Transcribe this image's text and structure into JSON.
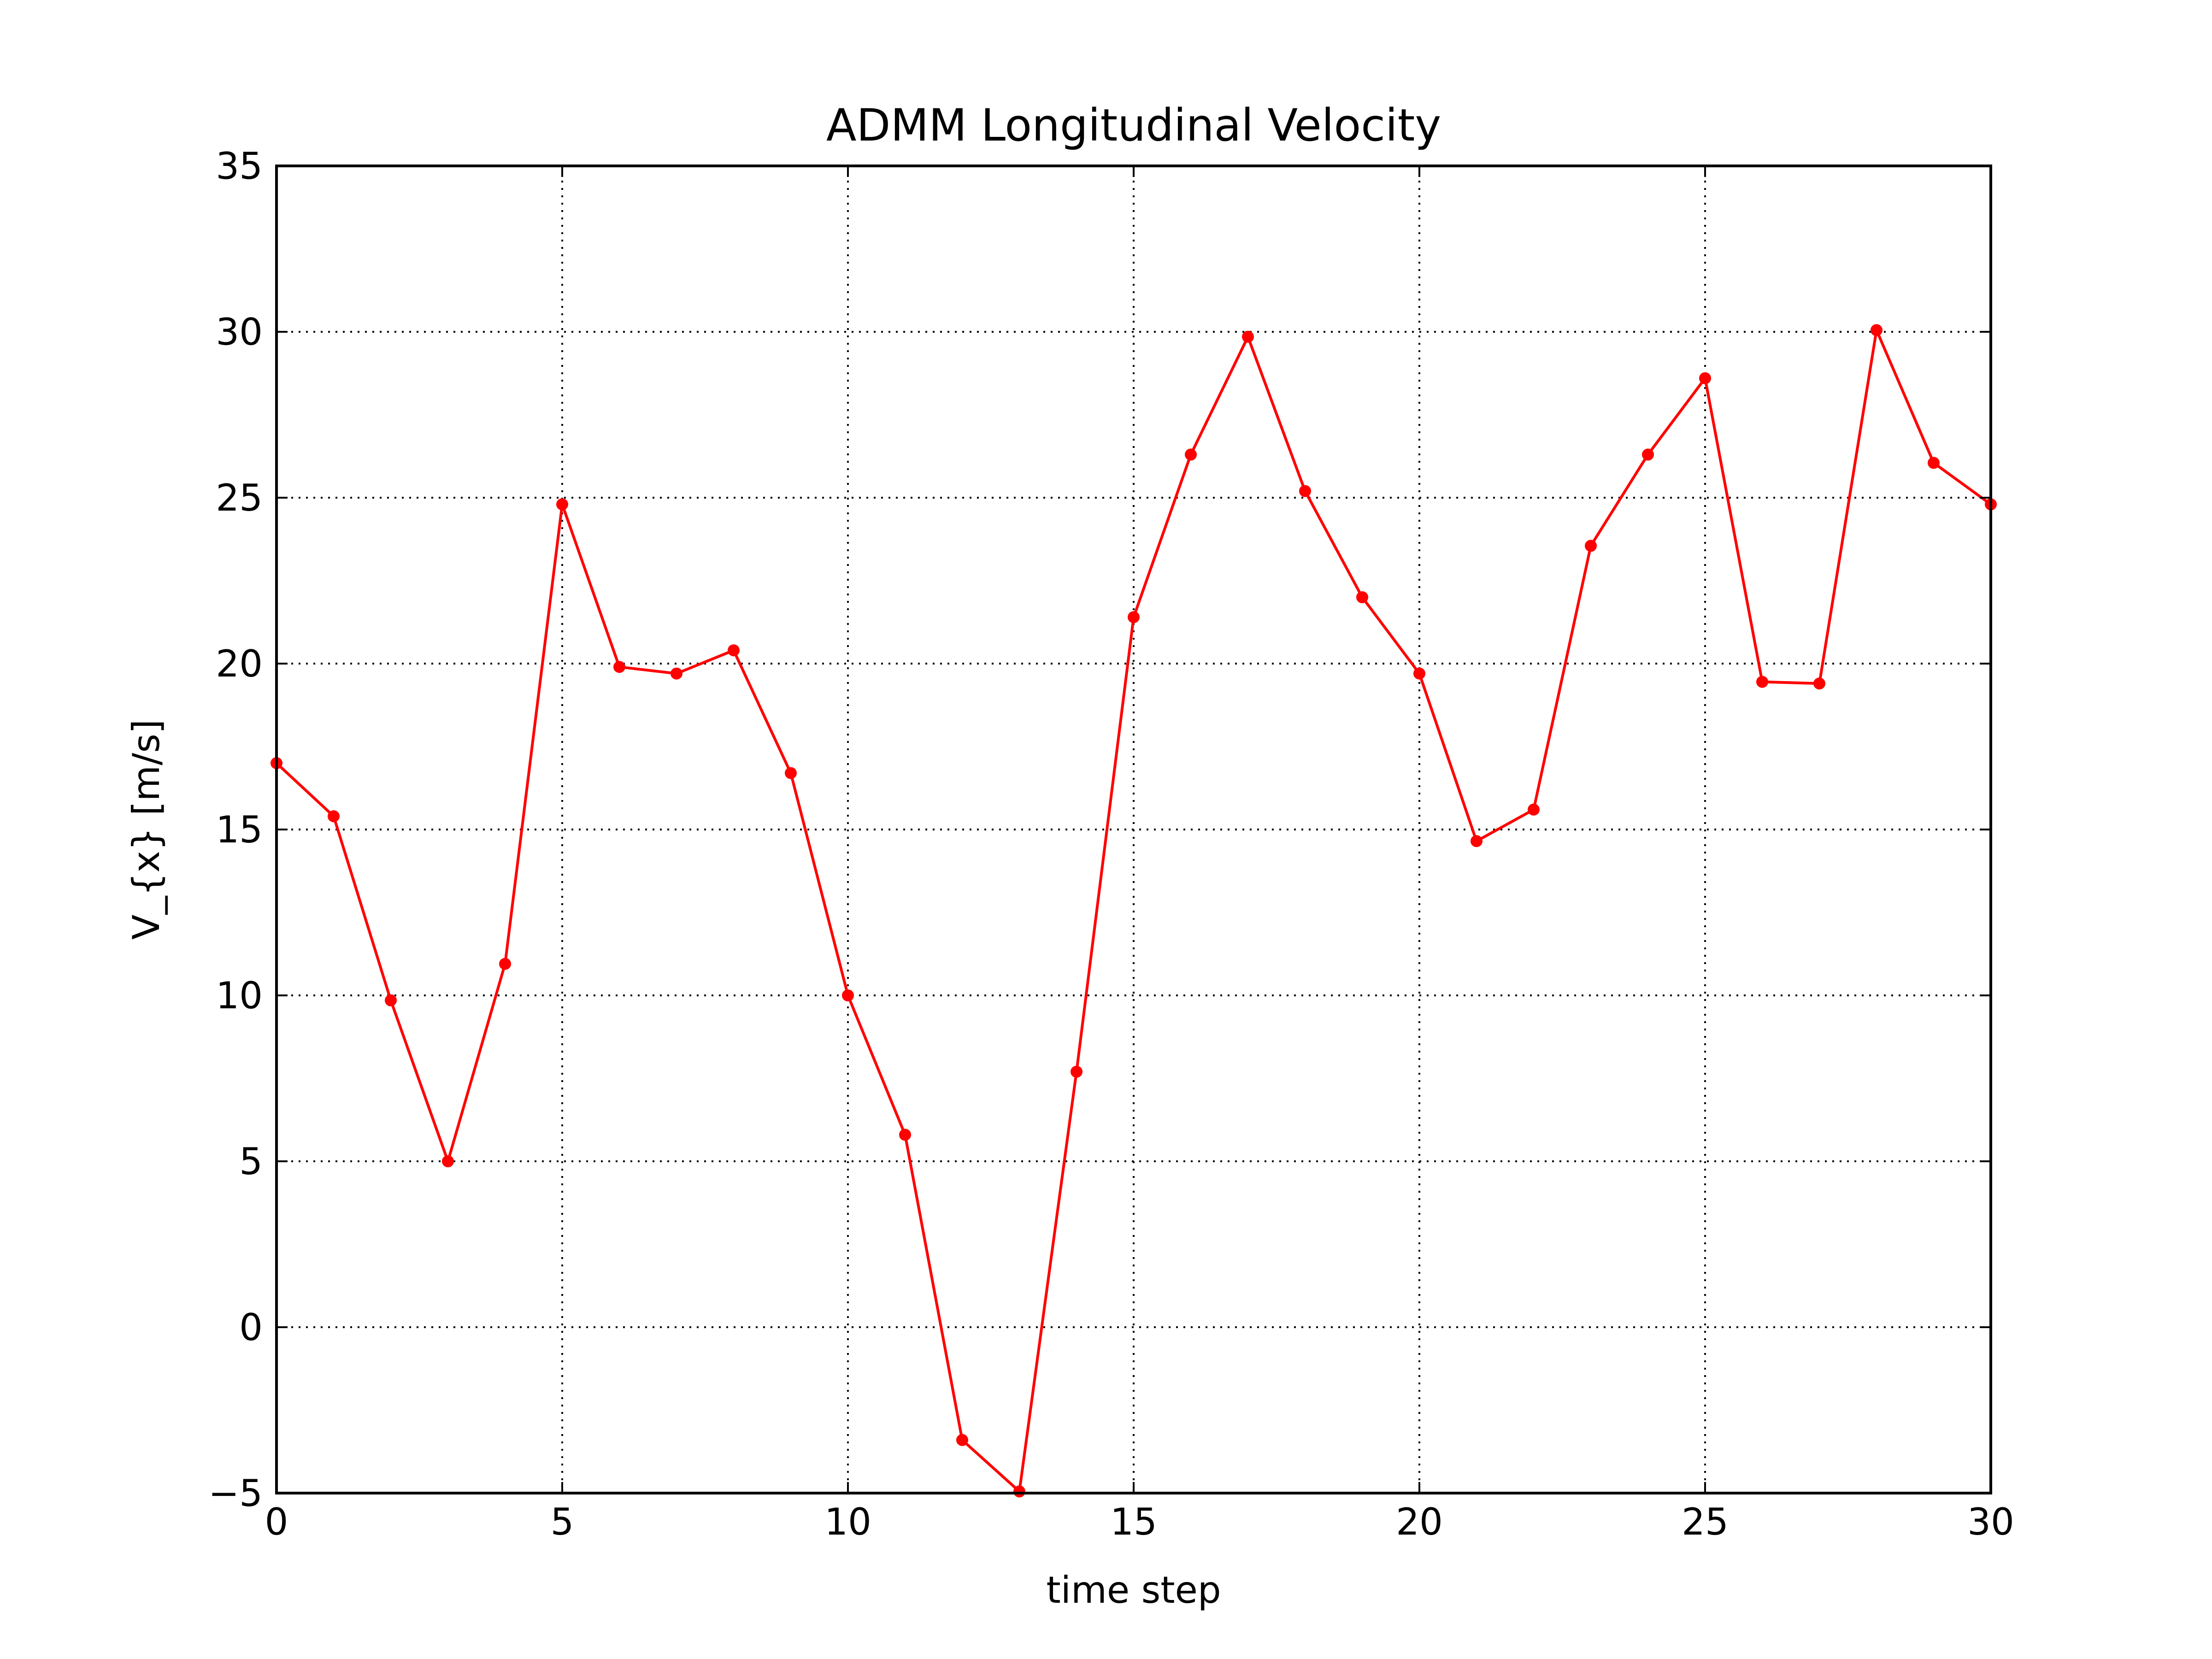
{
  "chart_data": {
    "type": "line",
    "title": "ADMM Longitudinal Velocity",
    "xlabel": "time step",
    "ylabel": "V_{x} [m/s]",
    "xlim": [
      0,
      30
    ],
    "ylim": [
      -5,
      35
    ],
    "xticks": [
      0,
      5,
      10,
      15,
      20,
      25,
      30
    ],
    "yticks": [
      -5,
      0,
      5,
      10,
      15,
      20,
      25,
      30,
      35
    ],
    "xtick_labels": [
      "0",
      "5",
      "10",
      "15",
      "20",
      "25",
      "30"
    ],
    "ytick_labels": [
      "−5",
      "0",
      "5",
      "10",
      "15",
      "20",
      "25",
      "30",
      "35"
    ],
    "grid": true,
    "grid_style": "dotted",
    "legend": "none",
    "series": [
      {
        "color": "#ff0000",
        "marker": "circle",
        "x": [
          0,
          1,
          2,
          3,
          4,
          5,
          6,
          7,
          8,
          9,
          10,
          11,
          12,
          13,
          14,
          15,
          16,
          17,
          18,
          19,
          20,
          21,
          22,
          23,
          24,
          25,
          26,
          27,
          28,
          29,
          30
        ],
        "y": [
          17.0,
          15.4,
          9.85,
          5.0,
          10.95,
          24.8,
          19.9,
          19.7,
          20.4,
          16.7,
          10.0,
          5.8,
          -3.4,
          -4.95,
          7.7,
          21.4,
          26.3,
          29.85,
          25.2,
          22.0,
          19.7,
          14.65,
          15.6,
          23.55,
          26.3,
          28.6,
          19.45,
          19.4,
          30.05,
          26.05,
          24.8
        ]
      }
    ]
  }
}
